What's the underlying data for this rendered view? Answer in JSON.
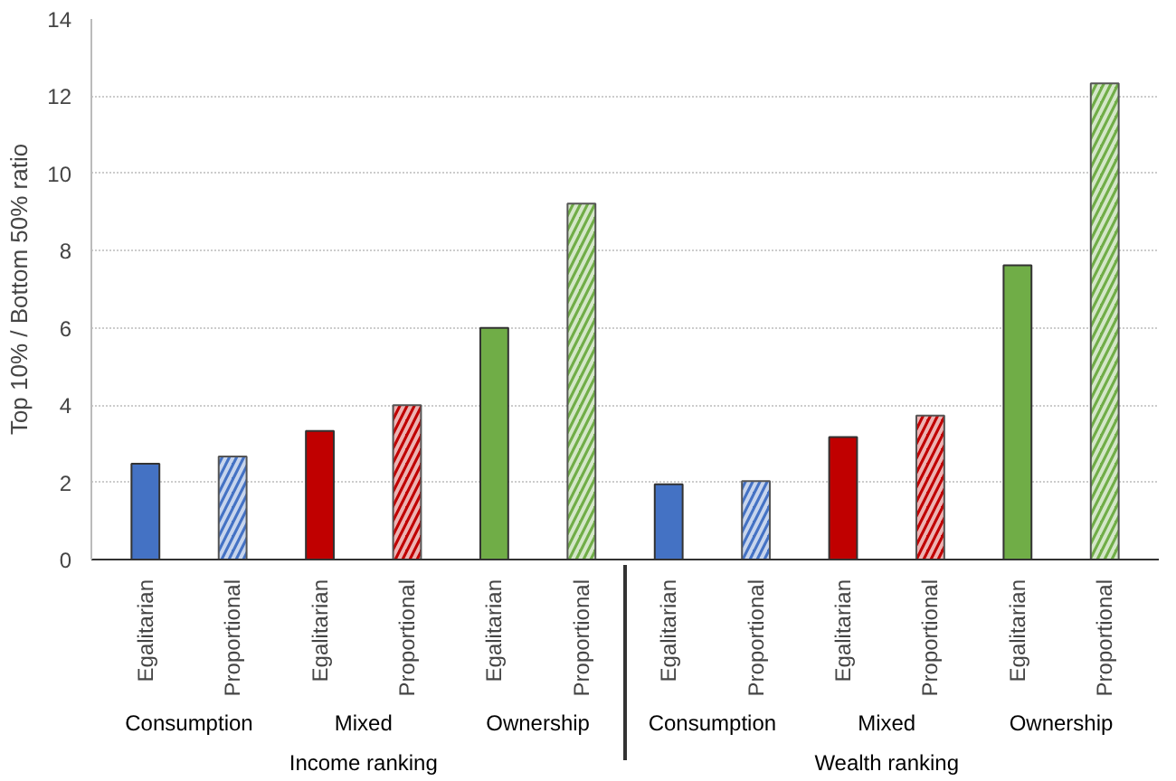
{
  "chart_data": {
    "type": "bar",
    "ylabel": "Top 10% / Bottom 50% ratio",
    "categories": [
      "Egalitarian",
      "Proportional",
      "Egalitarian",
      "Proportional",
      "Egalitarian",
      "Proportional",
      "Egalitarian",
      "Proportional",
      "Egalitarian",
      "Proportional",
      "Egalitarian",
      "Proportional"
    ],
    "annotations": [
      "Consumption",
      "Mixed",
      "Ownership",
      "Consumption",
      "Mixed",
      "Ownership",
      "Income ranking",
      "Wealth ranking"
    ],
    "values": [
      2.48,
      2.67,
      3.33,
      4.0,
      6.0,
      9.22,
      1.95,
      2.03,
      3.17,
      3.73,
      7.62,
      12.33
    ],
    "colors": [
      "#4472c4",
      "#4472c4",
      "#c00000",
      "#c00000",
      "#70ad47",
      "#70ad47",
      "#4472c4",
      "#4472c4",
      "#c00000",
      "#c00000",
      "#70ad47",
      "#70ad47"
    ],
    "ylim": [
      0,
      14
    ],
    "yticks": [
      0,
      2,
      4,
      6,
      8,
      10,
      12,
      14
    ],
    "grid": "y"
  }
}
